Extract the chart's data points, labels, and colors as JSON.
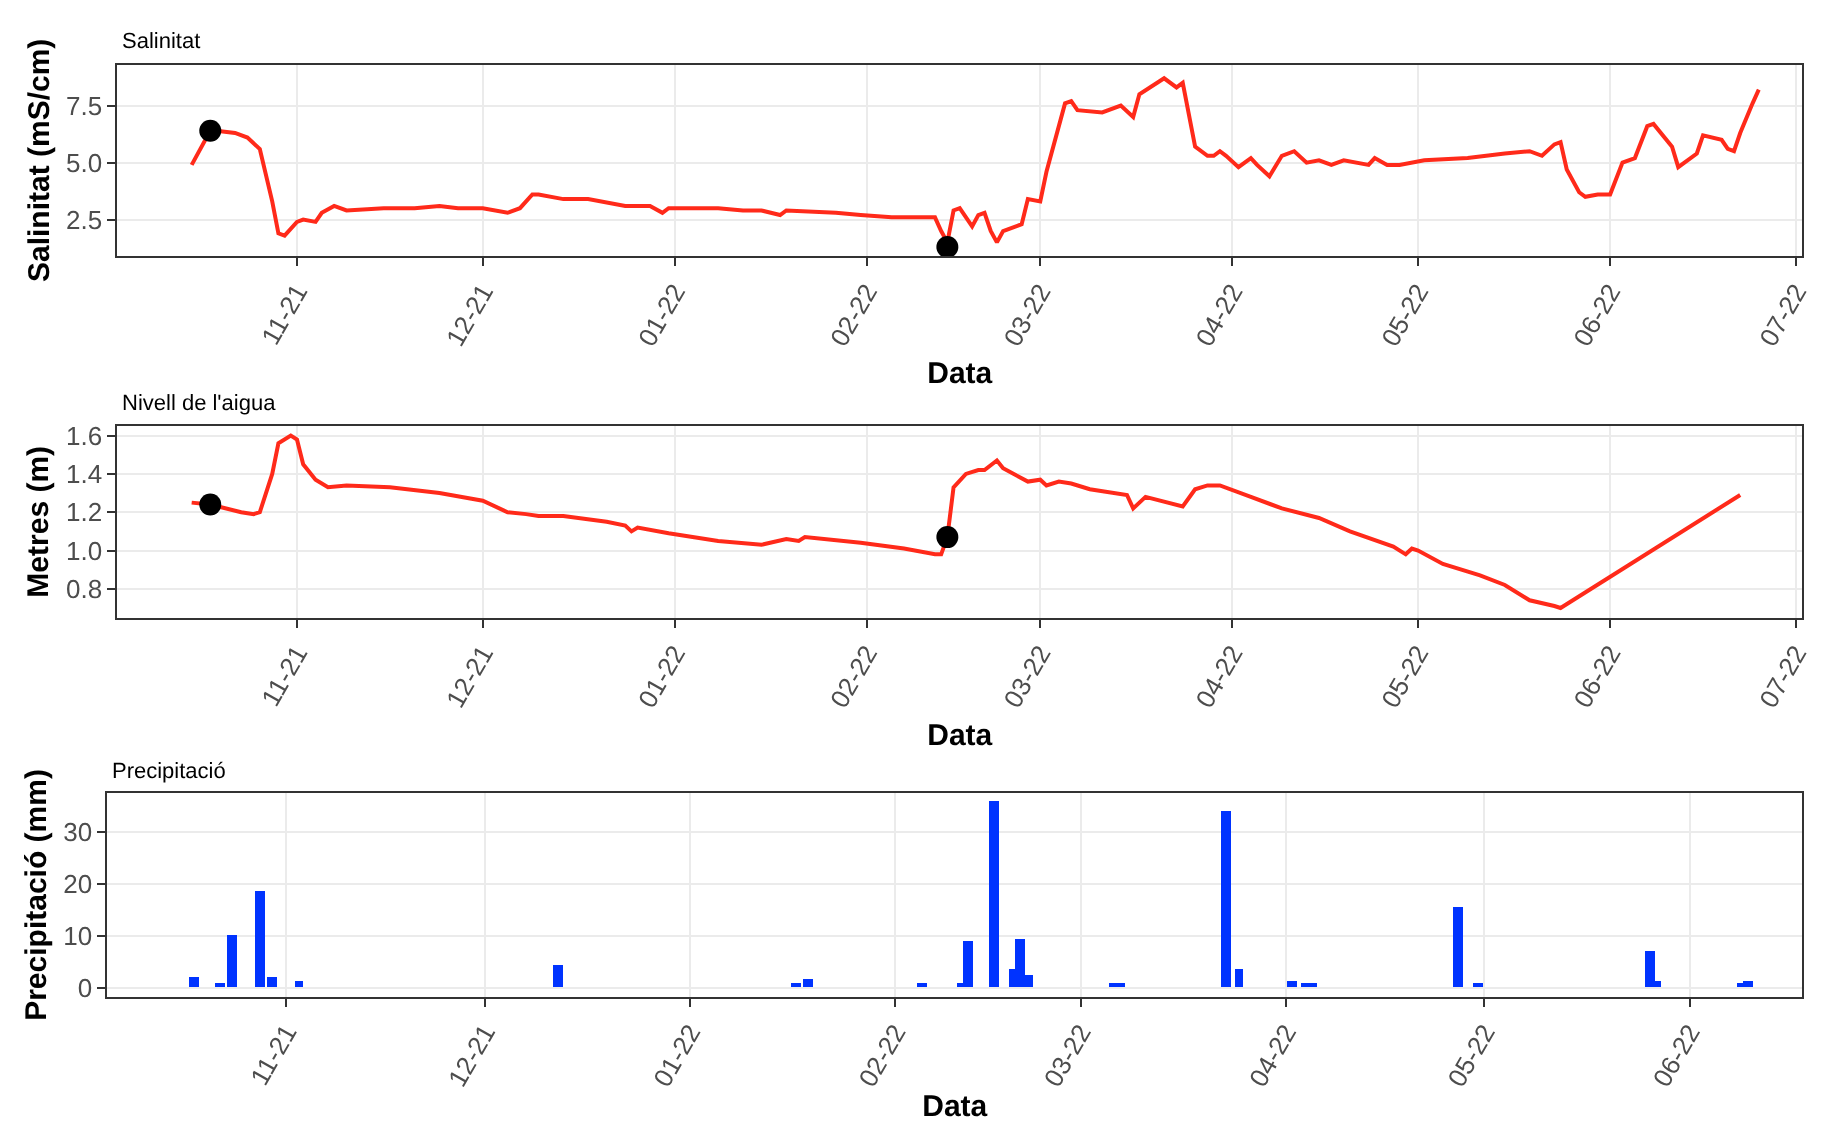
{
  "chart_data": [
    {
      "type": "line",
      "title": "Salinitat",
      "xlabel": "Data",
      "ylabel": "Salinitat (mS/cm)",
      "xlim": [
        "2021-10-03",
        "2022-07-02"
      ],
      "xticks": [
        {
          "value": "2021-11-01",
          "label": "11-21"
        },
        {
          "value": "2021-12-01",
          "label": "12-21"
        },
        {
          "value": "2022-01-01",
          "label": "01-22"
        },
        {
          "value": "2022-02-01",
          "label": "02-22"
        },
        {
          "value": "2022-03-01",
          "label": "03-22"
        },
        {
          "value": "2022-04-01",
          "label": "04-22"
        },
        {
          "value": "2022-05-01",
          "label": "05-22"
        },
        {
          "value": "2022-06-01",
          "label": "06-22"
        },
        {
          "value": "2022-07-01",
          "label": "07-22"
        }
      ],
      "ylim": [
        0.9,
        9.3
      ],
      "yticks": [
        {
          "value": 2.5,
          "label": "2.5"
        },
        {
          "value": 5,
          "label": "5.0"
        },
        {
          "value": 7.5,
          "label": "7.5"
        }
      ],
      "grid": true,
      "line_style": "solid",
      "series": [
        {
          "type": "line",
          "marker": "none",
          "color": "#ff2a1a",
          "x": [
            "2021-10-15",
            "2021-10-18",
            "2021-10-19",
            "2021-10-22",
            "2021-10-24",
            "2021-10-26",
            "2021-10-28",
            "2021-10-29",
            "2021-10-30",
            "2021-11-01",
            "2021-11-02",
            "2021-11-04",
            "2021-11-05",
            "2021-11-07",
            "2021-11-09",
            "2021-11-15",
            "2021-11-20",
            "2021-11-24",
            "2021-11-27",
            "2021-12-01",
            "2021-12-05",
            "2021-12-07",
            "2021-12-09",
            "2021-12-10",
            "2021-12-14",
            "2021-12-18",
            "2021-12-24",
            "2021-12-28",
            "2021-12-30",
            "2021-12-31",
            "2022-01-08",
            "2022-01-12",
            "2022-01-15",
            "2022-01-18",
            "2022-01-19",
            "2022-01-27",
            "2022-01-31",
            "2022-02-05",
            "2022-02-10",
            "2022-02-12",
            "2022-02-13",
            "2022-02-14",
            "2022-02-15",
            "2022-02-16",
            "2022-02-18",
            "2022-02-19",
            "2022-02-20",
            "2022-02-21",
            "2022-02-22",
            "2022-02-23",
            "2022-02-26",
            "2022-02-27",
            "2022-03-01",
            "2022-03-02",
            "2022-03-05",
            "2022-03-06",
            "2022-03-07",
            "2022-03-11",
            "2022-03-14",
            "2022-03-16",
            "2022-03-17",
            "2022-03-21",
            "2022-03-23",
            "2022-03-24",
            "2022-03-26",
            "2022-03-28",
            "2022-03-29",
            "2022-03-30",
            "2022-03-31",
            "2022-04-02",
            "2022-04-04",
            "2022-04-05",
            "2022-04-07",
            "2022-04-09",
            "2022-04-11",
            "2022-04-13",
            "2022-04-15",
            "2022-04-17",
            "2022-04-19",
            "2022-04-23",
            "2022-04-24",
            "2022-04-26",
            "2022-04-28",
            "2022-05-02",
            "2022-05-09",
            "2022-05-15",
            "2022-05-19",
            "2022-05-21",
            "2022-05-23",
            "2022-05-24",
            "2022-05-25",
            "2022-05-27",
            "2022-05-28",
            "2022-05-30",
            "2022-06-01",
            "2022-06-03",
            "2022-06-05",
            "2022-06-07",
            "2022-06-08",
            "2022-06-11",
            "2022-06-12",
            "2022-06-15",
            "2022-06-16",
            "2022-06-19",
            "2022-06-20",
            "2022-06-21",
            "2022-06-22",
            "2022-06-24",
            "2022-06-25"
          ],
          "values": [
            4.9,
            6.4,
            6.4,
            6.3,
            6.1,
            5.6,
            3.3,
            1.9,
            1.8,
            2.4,
            2.5,
            2.4,
            2.8,
            3.1,
            2.9,
            3.0,
            3.0,
            3.1,
            3.0,
            3.0,
            2.8,
            3.0,
            3.6,
            3.6,
            3.4,
            3.4,
            3.1,
            3.1,
            2.8,
            3.0,
            3.0,
            2.9,
            2.9,
            2.7,
            2.9,
            2.8,
            2.7,
            2.6,
            2.6,
            2.6,
            2.0,
            1.5,
            2.9,
            3.0,
            2.2,
            2.7,
            2.8,
            2.0,
            1.5,
            2.0,
            2.3,
            3.4,
            3.3,
            4.6,
            7.6,
            7.7,
            7.3,
            7.2,
            7.5,
            7.0,
            8.0,
            8.7,
            8.3,
            8.5,
            5.7,
            5.3,
            5.3,
            5.5,
            5.3,
            4.8,
            5.2,
            4.9,
            4.4,
            5.3,
            5.5,
            5.0,
            5.1,
            4.9,
            5.1,
            4.9,
            5.2,
            4.9,
            4.9,
            5.1,
            5.2,
            5.4,
            5.5,
            5.3,
            5.8,
            5.9,
            4.7,
            3.7,
            3.5,
            3.6,
            3.6,
            5.0,
            5.2,
            6.6,
            6.7,
            5.7,
            4.8,
            5.4,
            6.2,
            6.0,
            5.6,
            5.5,
            6.3,
            7.6,
            8.2
          ]
        },
        {
          "type": "scatter",
          "marker": "circle",
          "color": "#000000",
          "x": [
            "2021-10-18",
            "2022-02-14"
          ],
          "values": [
            6.4,
            1.3
          ]
        }
      ]
    },
    {
      "type": "line",
      "title": "Nivell de l'aigua",
      "xlabel": "Data",
      "ylabel": "Metres (m)",
      "xlim": [
        "2021-10-03",
        "2022-07-02"
      ],
      "xticks": [
        {
          "value": "2021-11-01",
          "label": "11-21"
        },
        {
          "value": "2021-12-01",
          "label": "12-21"
        },
        {
          "value": "2022-01-01",
          "label": "01-22"
        },
        {
          "value": "2022-02-01",
          "label": "02-22"
        },
        {
          "value": "2022-03-01",
          "label": "03-22"
        },
        {
          "value": "2022-04-01",
          "label": "04-22"
        },
        {
          "value": "2022-05-01",
          "label": "05-22"
        },
        {
          "value": "2022-06-01",
          "label": "06-22"
        },
        {
          "value": "2022-07-01",
          "label": "07-22"
        }
      ],
      "ylim": [
        0.65,
        1.65
      ],
      "yticks": [
        {
          "value": 0.8,
          "label": "0.8"
        },
        {
          "value": 1,
          "label": "1.0"
        },
        {
          "value": 1.2,
          "label": "1.2"
        },
        {
          "value": 1.4,
          "label": "1.4"
        },
        {
          "value": 1.6,
          "label": "1.6"
        }
      ],
      "grid": true,
      "line_style": "solid",
      "series": [
        {
          "type": "line",
          "marker": "none",
          "color": "#ff2a1a",
          "x": [
            "2021-10-15",
            "2021-10-18",
            "2021-10-23",
            "2021-10-25",
            "2021-10-26",
            "2021-10-28",
            "2021-10-29",
            "2021-10-31",
            "2021-11-01",
            "2021-11-02",
            "2021-11-04",
            "2021-11-06",
            "2021-11-09",
            "2021-11-16",
            "2021-11-24",
            "2021-12-01",
            "2021-12-05",
            "2021-12-08",
            "2021-12-10",
            "2021-12-14",
            "2021-12-21",
            "2021-12-24",
            "2021-12-25",
            "2021-12-26",
            "2021-12-31",
            "2022-01-08",
            "2022-01-15",
            "2022-01-19",
            "2022-01-21",
            "2022-01-22",
            "2022-01-31",
            "2022-02-07",
            "2022-02-12",
            "2022-02-13",
            "2022-02-14",
            "2022-02-15",
            "2022-02-17",
            "2022-02-19",
            "2022-02-20",
            "2022-02-22",
            "2022-02-23",
            "2022-02-27",
            "2022-03-01",
            "2022-03-02",
            "2022-03-04",
            "2022-03-06",
            "2022-03-09",
            "2022-03-15",
            "2022-03-16",
            "2022-03-18",
            "2022-03-24",
            "2022-03-26",
            "2022-03-28",
            "2022-03-30",
            "2022-04-04",
            "2022-04-09",
            "2022-04-15",
            "2022-04-20",
            "2022-04-27",
            "2022-04-29",
            "2022-04-30",
            "2022-05-01",
            "2022-05-05",
            "2022-05-11",
            "2022-05-15",
            "2022-05-19",
            "2022-05-23",
            "2022-05-24",
            "2022-06-22"
          ],
          "values": [
            1.25,
            1.24,
            1.2,
            1.19,
            1.2,
            1.4,
            1.56,
            1.6,
            1.58,
            1.45,
            1.37,
            1.33,
            1.34,
            1.33,
            1.3,
            1.26,
            1.2,
            1.19,
            1.18,
            1.18,
            1.15,
            1.13,
            1.1,
            1.12,
            1.09,
            1.05,
            1.03,
            1.06,
            1.05,
            1.07,
            1.04,
            1.01,
            0.98,
            0.98,
            1.07,
            1.33,
            1.4,
            1.42,
            1.42,
            1.47,
            1.43,
            1.36,
            1.37,
            1.34,
            1.36,
            1.35,
            1.32,
            1.29,
            1.22,
            1.28,
            1.23,
            1.32,
            1.34,
            1.34,
            1.28,
            1.22,
            1.17,
            1.1,
            1.02,
            0.98,
            1.01,
            1.0,
            0.93,
            0.87,
            0.82,
            0.74,
            0.71,
            0.7,
            1.29
          ]
        },
        {
          "type": "scatter",
          "marker": "circle",
          "color": "#000000",
          "x": [
            "2021-10-18",
            "2022-02-14"
          ],
          "values": [
            1.24,
            1.07
          ]
        }
      ]
    },
    {
      "type": "bar",
      "title": "Precipitació",
      "xlabel": "Data",
      "ylabel": "Precipitació (mm)",
      "xlim": [
        "2021-10-05",
        "2022-06-18"
      ],
      "xticks": [
        {
          "value": "2021-11-01",
          "label": "11-21"
        },
        {
          "value": "2021-12-01",
          "label": "12-21"
        },
        {
          "value": "2022-01-01",
          "label": "01-22"
        },
        {
          "value": "2022-02-01",
          "label": "02-22"
        },
        {
          "value": "2022-03-01",
          "label": "03-22"
        },
        {
          "value": "2022-04-01",
          "label": "04-22"
        },
        {
          "value": "2022-05-01",
          "label": "05-22"
        },
        {
          "value": "2022-06-01",
          "label": "06-22"
        }
      ],
      "ylim": [
        -1.6,
        37.5
      ],
      "yticks": [
        0,
        10,
        20,
        30
      ],
      "grid": true,
      "color": "#0033ff",
      "x": [
        "2021-10-18",
        "2021-10-22",
        "2021-10-24",
        "2021-10-28",
        "2021-10-30",
        "2021-11-03",
        "2021-12-12",
        "2022-01-17",
        "2022-01-19",
        "2022-02-05",
        "2022-02-11",
        "2022-02-12",
        "2022-02-16",
        "2022-02-19",
        "2022-02-20",
        "2022-02-21",
        "2022-03-06",
        "2022-03-07",
        "2022-03-23",
        "2022-03-25",
        "2022-04-02",
        "2022-04-04",
        "2022-04-05",
        "2022-04-27",
        "2022-04-30",
        "2022-05-26",
        "2022-05-27",
        "2022-06-09",
        "2022-06-10"
      ],
      "values": [
        2,
        1,
        10,
        18.5,
        2,
        1.5,
        4.5,
        1,
        1.7,
        1,
        1,
        9,
        36,
        3.5,
        9.5,
        2.5,
        1,
        0.8,
        34,
        3.5,
        1.2,
        1,
        1,
        15.5,
        1,
        7,
        1.5,
        1,
        1.5
      ]
    }
  ]
}
